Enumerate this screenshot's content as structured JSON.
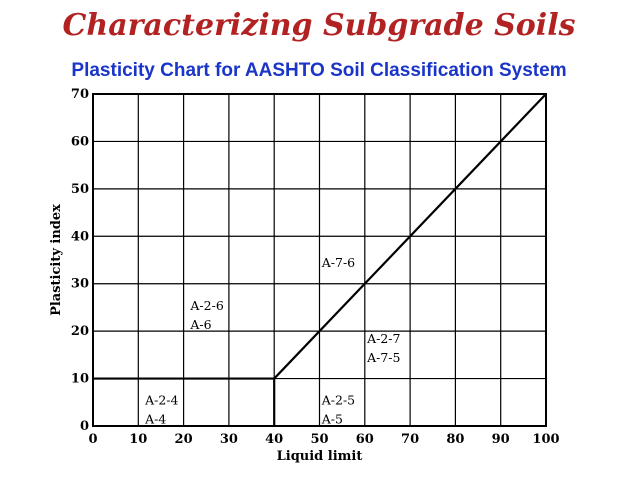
{
  "slide": {
    "title": "Characterizing Subgrade Soils"
  },
  "chart_data": {
    "type": "line",
    "title": "Plasticity Chart for AASHTO Soil Classification System",
    "xlabel": "Liquid limit",
    "ylabel": "Plasticity index",
    "xlim": [
      0,
      100
    ],
    "ylim": [
      0,
      70
    ],
    "x_ticks": [
      0,
      10,
      20,
      30,
      40,
      50,
      60,
      70,
      80,
      90,
      100
    ],
    "y_ticks": [
      0,
      10,
      20,
      30,
      40,
      50,
      60,
      70
    ],
    "grid": true,
    "boundaries": [
      {
        "x": [
          0,
          40
        ],
        "y": [
          10,
          10
        ]
      },
      {
        "x": [
          40,
          40
        ],
        "y": [
          0,
          10
        ]
      },
      {
        "x": [
          40,
          100
        ],
        "y": [
          10,
          70
        ]
      }
    ],
    "zones": [
      {
        "lines": [
          "A-2-4",
          "A-4"
        ],
        "x": 11.5,
        "y": 4.5
      },
      {
        "lines": [
          "A-2-6",
          "A-6"
        ],
        "x": 21.5,
        "y": 24.5
      },
      {
        "lines": [
          "A-7-6"
        ],
        "x": 50.5,
        "y": 33.5
      },
      {
        "lines": [
          "A-2-7",
          "A-7-5"
        ],
        "x": 60.5,
        "y": 17.5
      },
      {
        "lines": [
          "A-2-5",
          "A-5"
        ],
        "x": 50.5,
        "y": 4.5
      }
    ]
  }
}
